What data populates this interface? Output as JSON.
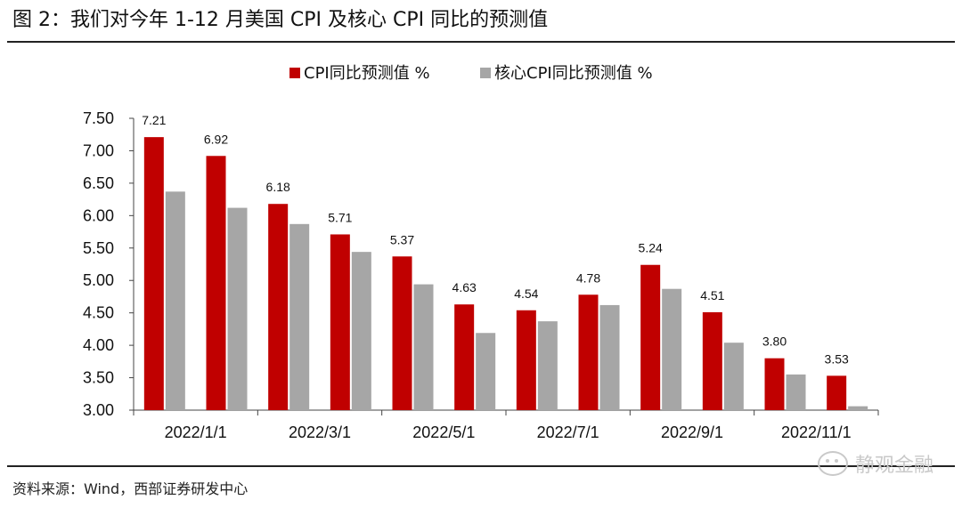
{
  "title": "图 2：我们对今年 1-12 月美国 CPI 及核心 CPI 同比的预测值",
  "source": "资料来源：Wind，西部证券研发中心",
  "watermark": "静观金融",
  "chart_data": {
    "type": "bar",
    "categories": [
      "2022/1/1",
      "2022/2/1",
      "2022/3/1",
      "2022/4/1",
      "2022/5/1",
      "2022/6/1",
      "2022/7/1",
      "2022/8/1",
      "2022/9/1",
      "2022/10/1",
      "2022/11/1",
      "2022/12/1"
    ],
    "x_tick_labels": [
      "2022/1/1",
      "",
      "2022/3/1",
      "",
      "2022/5/1",
      "",
      "2022/7/1",
      "",
      "2022/9/1",
      "",
      "2022/11/1",
      ""
    ],
    "series": [
      {
        "name": "CPI同比预测值 %",
        "color": "#c00000",
        "values": [
          7.21,
          6.92,
          6.18,
          5.71,
          5.37,
          4.63,
          4.54,
          4.78,
          5.24,
          4.51,
          3.8,
          3.53
        ],
        "labels": [
          "7.21",
          "6.92",
          "6.18",
          "5.71",
          "5.37",
          "4.63",
          "4.54",
          "4.78",
          "5.24",
          "4.51",
          "3.80",
          "3.53"
        ]
      },
      {
        "name": "核心CPI同比预测值  %",
        "color": "#a6a6a6",
        "values": [
          6.37,
          6.12,
          5.87,
          5.44,
          4.94,
          4.19,
          4.37,
          4.62,
          4.87,
          4.04,
          3.55,
          3.06
        ]
      }
    ],
    "ylim": [
      3.0,
      7.5
    ],
    "yticks": [
      "7.50",
      "7.00",
      "6.50",
      "6.00",
      "5.50",
      "5.00",
      "4.50",
      "4.00",
      "3.50",
      "3.00"
    ],
    "legend_position": "top-center",
    "grid": false
  }
}
